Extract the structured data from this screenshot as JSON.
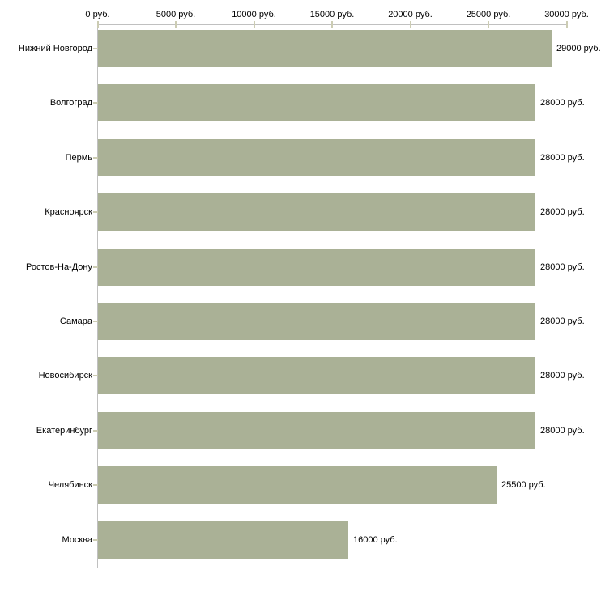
{
  "chart_data": {
    "type": "bar",
    "orientation": "horizontal",
    "title": "",
    "xlabel": "",
    "ylabel": "",
    "categories": [
      "Нижний Новгород",
      "Волгоград",
      "Пермь",
      "Красноярск",
      "Ростов-На-Дону",
      "Самара",
      "Новосибирск",
      "Екатеринбург",
      "Челябинск",
      "Москва"
    ],
    "values": [
      29000,
      28000,
      28000,
      28000,
      28000,
      28000,
      28000,
      28000,
      25500,
      16000
    ],
    "value_labels": [
      "29000 руб.",
      "28000 руб.",
      "28000 руб.",
      "28000 руб.",
      "28000 руб.",
      "28000 руб.",
      "28000 руб.",
      "28000 руб.",
      "25500 руб.",
      "16000 руб."
    ],
    "x_tick_labels": [
      "0 руб.",
      "5000 руб.",
      "10000 руб.",
      "15000 руб.",
      "20000 руб.",
      "25000 руб.",
      "30000 руб."
    ],
    "x_tick_values": [
      0,
      5000,
      10000,
      15000,
      20000,
      25000,
      30000
    ],
    "xlim": [
      0,
      30000
    ],
    "grid": false,
    "legend": "none",
    "axis_position": "top",
    "unit": "руб.",
    "colors": {
      "bar": "#aab196",
      "axis_line": "#c0c0c0",
      "tick": "#ccccb3",
      "text": "#000000",
      "background": "#ffffff"
    }
  }
}
